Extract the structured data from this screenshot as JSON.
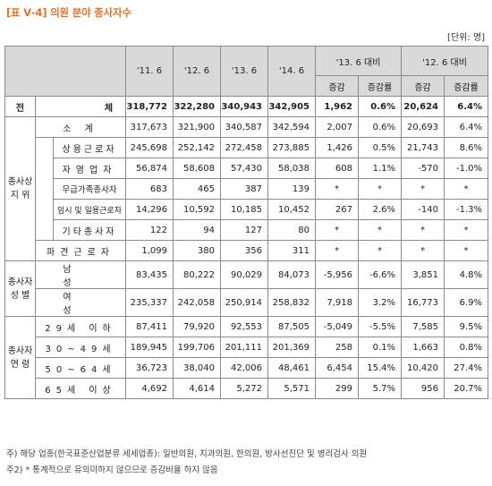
{
  "title": "[표 Ⅴ-4] 의원 분야 종사자수",
  "unit": "[단위: 명]",
  "headers": {
    "years": [
      "'11. 6",
      "'12. 6",
      "'13. 6",
      "'14. 6"
    ],
    "cmp1": "'13. 6 대비",
    "cmp2": "'12. 6 대비",
    "inc": "증감",
    "rate": "증감률"
  },
  "total": {
    "label1": "전",
    "label2": "체",
    "v": [
      "318,772",
      "322,280",
      "340,943",
      "342,905",
      "1,962",
      "0.6%",
      "20,624",
      "6.4%"
    ]
  },
  "groups": {
    "status": "종사상\n지 위",
    "gender": "종사자\n성 별",
    "age": "종사자\n연 령"
  },
  "rows": [
    {
      "label": "소 계",
      "v": [
        "317,673",
        "321,900",
        "340,587",
        "342,594",
        "2,007",
        "0.6%",
        "20,693",
        "6.4%"
      ]
    },
    {
      "label": "상용근로자",
      "v": [
        "245,698",
        "252,142",
        "272,458",
        "273,885",
        "1,426",
        "0.5%",
        "21,743",
        "8.6%"
      ]
    },
    {
      "label": "자영업자",
      "v": [
        "56,874",
        "58,608",
        "57,430",
        "58,038",
        "608",
        "1.1%",
        "-570",
        "-1.0%"
      ]
    },
    {
      "label": "무급가족종사자",
      "v": [
        "683",
        "465",
        "387",
        "139",
        "*",
        "*",
        "*",
        "*"
      ]
    },
    {
      "label": "임시 및 일용근로자",
      "v": [
        "14,296",
        "10,592",
        "10,185",
        "10,452",
        "267",
        "2.6%",
        "-140",
        "-1.3%"
      ]
    },
    {
      "label": "기타종사자",
      "v": [
        "122",
        "94",
        "127",
        "80",
        "*",
        "*",
        "*",
        "*"
      ]
    },
    {
      "label": "파견근로자",
      "v": [
        "1,099",
        "380",
        "356",
        "311",
        "*",
        "*",
        "*",
        "*"
      ]
    },
    {
      "label": "남 성",
      "v": [
        "83,435",
        "80,222",
        "90,029",
        "84,073",
        "-5,956",
        "-6.6%",
        "3,851",
        "4.8%"
      ]
    },
    {
      "label": "여 성",
      "v": [
        "235,337",
        "242,058",
        "250,914",
        "258,832",
        "7,918",
        "3.2%",
        "16,773",
        "6.9%"
      ]
    },
    {
      "label": "29세 이하",
      "v": [
        "87,411",
        "79,920",
        "92,553",
        "87,505",
        "-5,049",
        "-5.5%",
        "7,585",
        "9.5%"
      ]
    },
    {
      "label": "30~49세",
      "v": [
        "189,945",
        "199,706",
        "201,111",
        "201,369",
        "258",
        "0.1%",
        "1,663",
        "0.8%"
      ]
    },
    {
      "label": "50~64세",
      "v": [
        "36,723",
        "38,040",
        "42,006",
        "48,461",
        "6,454",
        "15.4%",
        "10,420",
        "27.4%"
      ]
    },
    {
      "label": "65세 이상",
      "v": [
        "4,692",
        "4,614",
        "5,272",
        "5,571",
        "299",
        "5.7%",
        "956",
        "20.7%"
      ]
    }
  ],
  "notes": [
    "주) 해당 업종(한국표준산업분류 세세업종): 일반의원, 치과의원, 한의원, 방사선진단 및 병리검사 의원",
    "주2) * 통계적으로 유의미하지 않으므로 증감비율 하지 않음"
  ]
}
